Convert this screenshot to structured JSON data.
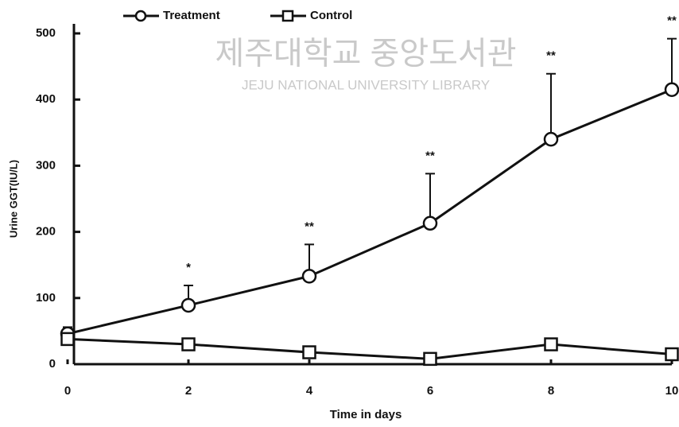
{
  "chart_data": {
    "type": "line",
    "xlabel": "Time in days",
    "ylabel": "Urine GGT(IU/L)",
    "x": [
      0,
      2,
      4,
      6,
      8,
      10
    ],
    "series": [
      {
        "name": "Treatment",
        "color": "#111111",
        "marker": "circle",
        "values": [
          46,
          89,
          133,
          213,
          340,
          415
        ],
        "errors": [
          10,
          30,
          48,
          75,
          99,
          77
        ]
      },
      {
        "name": "Control",
        "color": "#111111",
        "marker": "square",
        "values": [
          38,
          30,
          18,
          8,
          30,
          15
        ]
      }
    ],
    "annotations": [
      {
        "x": 2,
        "text": "*"
      },
      {
        "x": 4,
        "text": "**"
      },
      {
        "x": 6,
        "text": "**"
      },
      {
        "x": 8,
        "text": "**"
      },
      {
        "x": 10,
        "text": "**"
      }
    ],
    "xlim": [
      0,
      10
    ],
    "xticks": [
      0,
      2,
      4,
      6,
      8,
      10
    ],
    "ylim": [
      0,
      500
    ],
    "yticks": [
      0,
      100,
      200,
      300,
      400,
      500
    ],
    "legend": "top-left"
  },
  "watermark": {
    "title": "제주대학교 중앙도서관",
    "subtitle": "JEJU NATIONAL UNIVERSITY LIBRARY"
  }
}
